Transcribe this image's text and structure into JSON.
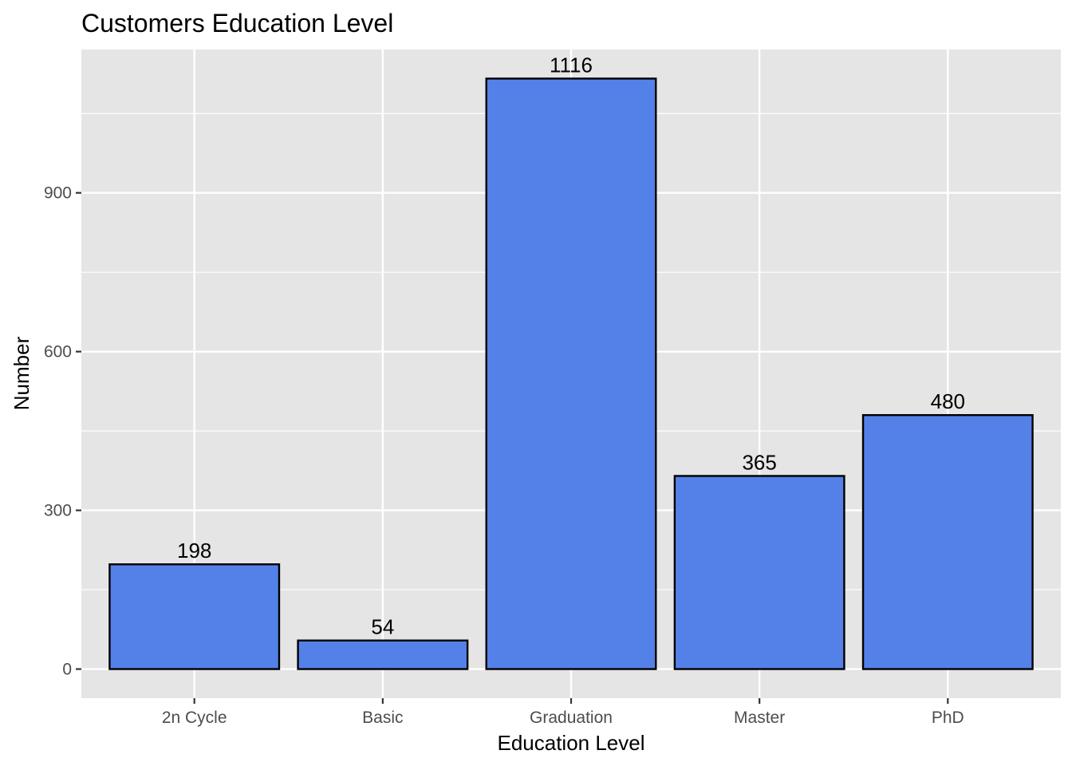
{
  "chart_data": {
    "type": "bar",
    "title": "Customers Education Level",
    "xlabel": "Education Level",
    "ylabel": "Number",
    "categories": [
      "2n Cycle",
      "Basic",
      "Graduation",
      "Master",
      "PhD"
    ],
    "values": [
      198,
      54,
      1116,
      365,
      480
    ],
    "data_labels": [
      "198",
      "54",
      "1116",
      "365",
      "480"
    ],
    "y_ticks": [
      0,
      300,
      600,
      900
    ],
    "y_tick_labels": [
      "0",
      "300",
      "600",
      "900"
    ],
    "ylim": [
      -55,
      1171
    ],
    "grid": true,
    "legend": "none",
    "colors": {
      "bar_fill": "#5381e8",
      "bar_stroke": "#000000",
      "panel_background": "#e5e5e5",
      "grid_line": "#ffffff"
    }
  }
}
